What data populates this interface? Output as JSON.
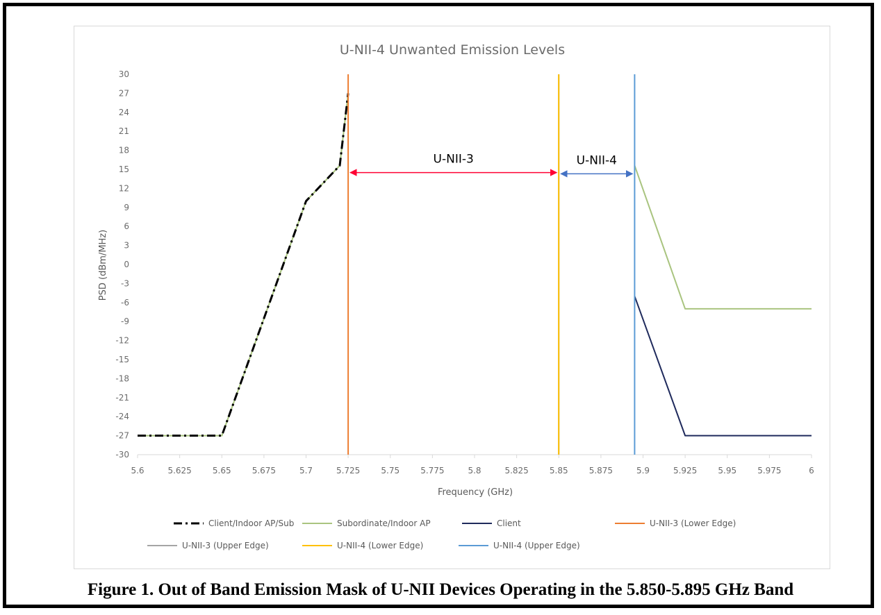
{
  "caption": "Figure 1. Out of Band Emission Mask of U-NII Devices Operating in the 5.850-5.895 GHz Band",
  "chart_data": {
    "type": "line",
    "title": "U-NII-4 Unwanted Emission Levels",
    "xlabel": "Frequency (GHz)",
    "ylabel": "PSD (dBm/MHz)",
    "xlim": [
      5.6,
      6.0
    ],
    "ylim": [
      -30,
      30
    ],
    "x_ticks": [
      5.6,
      5.625,
      5.65,
      5.675,
      5.7,
      5.725,
      5.75,
      5.775,
      5.8,
      5.825,
      5.85,
      5.875,
      5.9,
      5.925,
      5.95,
      5.975,
      6.0
    ],
    "x_tick_labels": [
      "5.6",
      "5.625",
      "5.65",
      "5.675",
      "5.7",
      "5.725",
      "5.75",
      "5.775",
      "5.8",
      "5.825",
      "5.85",
      "5.875",
      "5.9",
      "5.925",
      "5.95",
      "5.975",
      "6"
    ],
    "y_ticks": [
      30,
      27,
      24,
      21,
      18,
      15,
      12,
      9,
      6,
      3,
      0,
      -3,
      -6,
      -9,
      -12,
      -15,
      -18,
      -21,
      -24,
      -27,
      -30
    ],
    "y_tick_labels": [
      "30",
      "27",
      "24",
      "21",
      "18",
      "15",
      "12",
      "9",
      "6",
      "3",
      "0",
      "-3",
      "-6",
      "-9",
      "-12",
      "-15",
      "-18",
      "-21",
      "-24",
      "-27",
      "-30"
    ],
    "grid": false,
    "legend_position": "bottom",
    "series": [
      {
        "name": "Client/Indoor AP/Sub",
        "color": "#000000",
        "style": "dashdot",
        "x": [
          5.6,
          5.65,
          5.7,
          5.72,
          5.725
        ],
        "y": [
          -27,
          -27,
          10,
          15.6,
          27
        ]
      },
      {
        "name": "Subordinate/Indoor AP",
        "color": "#a9c47f",
        "style": "solid",
        "x": [
          5.6,
          5.65,
          5.7,
          5.72,
          5.725,
          null,
          5.895,
          5.925,
          6.0
        ],
        "y": [
          -27,
          -27,
          10,
          15.6,
          27,
          null,
          15.6,
          -7,
          -7
        ]
      },
      {
        "name": "Client",
        "color": "#1f2a5c",
        "style": "solid",
        "x": [
          5.895,
          5.925,
          6.0
        ],
        "y": [
          -5,
          -27,
          -27
        ]
      },
      {
        "name": "U-NII-3 (Lower Edge)",
        "color": "#ed7d31",
        "style": "solid",
        "x": [
          5.725,
          5.725
        ],
        "y": [
          -30,
          30
        ]
      },
      {
        "name": "U-NII-3 (Upper Edge)",
        "color": "#a5a5a5",
        "style": "solid",
        "x": [
          5.85,
          5.85
        ],
        "y": [
          -30,
          30
        ]
      },
      {
        "name": "U-NII-4 (Lower Edge)",
        "color": "#ffc000",
        "style": "solid",
        "x": [
          5.85,
          5.85
        ],
        "y": [
          -30,
          30
        ]
      },
      {
        "name": "U-NII-4 (Upper Edge)",
        "color": "#5b9bd5",
        "style": "solid",
        "x": [
          5.895,
          5.895
        ],
        "y": [
          -30,
          30
        ]
      }
    ],
    "annotations": [
      {
        "text": "U-NII-3",
        "from_x": 5.725,
        "to_x": 5.85,
        "y": 14.5,
        "color": "#ff0033"
      },
      {
        "text": "U-NII-4",
        "from_x": 5.85,
        "to_x": 5.895,
        "y": 14.3,
        "color": "#4472c4"
      }
    ]
  }
}
